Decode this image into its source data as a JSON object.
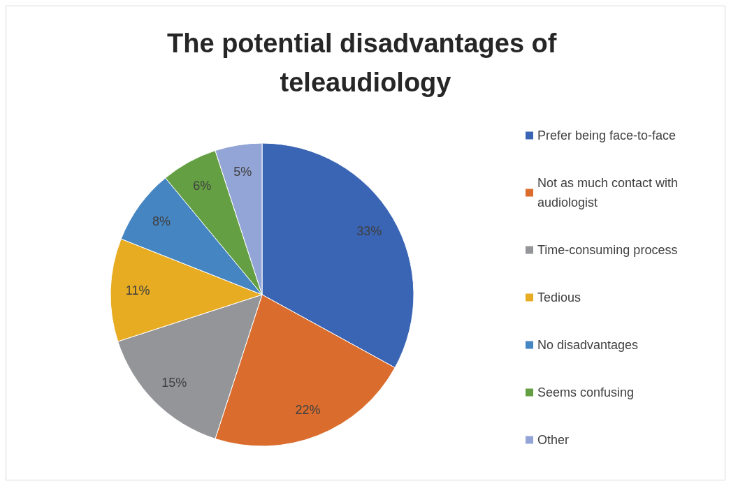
{
  "chart_data": {
    "type": "pie",
    "title": "The potential disadvantages of teleaudiology",
    "categories": [
      "Prefer being face-to-face",
      "Not as much contact with audiologist",
      "Time-consuming process",
      "Tedious",
      "No disadvantages",
      "Seems confusing",
      "Other"
    ],
    "values": [
      33,
      22,
      15,
      11,
      8,
      6,
      5
    ],
    "value_labels": [
      "33%",
      "22%",
      "15%",
      "11%",
      "8%",
      "6%",
      "5%"
    ],
    "colors": [
      "#3a64b4",
      "#da6d2e",
      "#939598",
      "#e8ac22",
      "#4585c2",
      "#64a043",
      "#93a5d6"
    ],
    "legend": "right"
  }
}
